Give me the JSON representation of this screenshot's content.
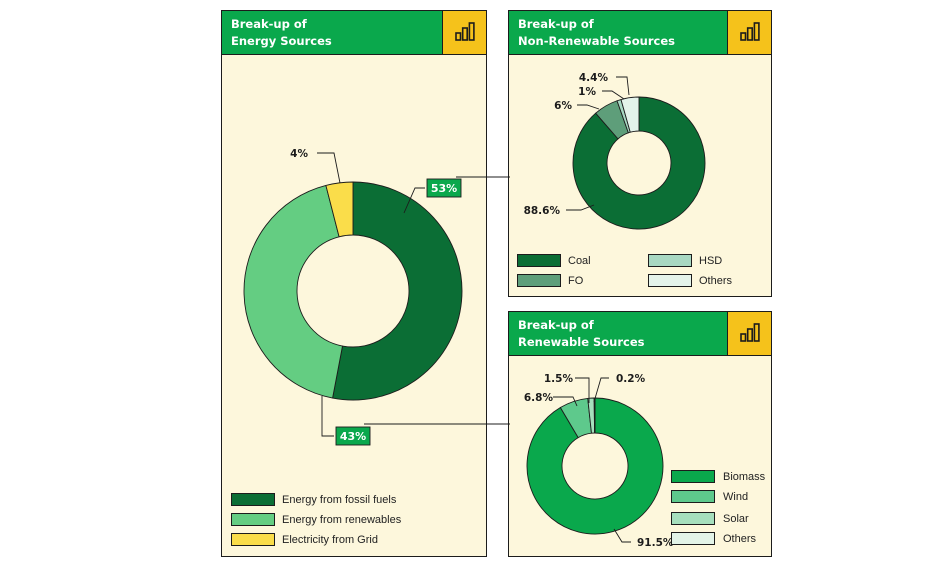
{
  "colors": {
    "panel_bg": "#fdf7dc",
    "header_bg": "#0aa84c",
    "icon_bg": "#f5c21b",
    "dark_green": "#0b6e35",
    "mid_green": "#64cd82",
    "yellow": "#fadd4a",
    "fo_green": "#5e9e7a",
    "hsd_green": "#a8d8c2",
    "others_light": "#e4f3ea",
    "biomass_green": "#0aa84c",
    "wind_green": "#5ec98c",
    "solar_green": "#a6dfbd",
    "others_pale": "#e3f4e8"
  },
  "panels": {
    "energy": {
      "title": "Break-up of\nEnergy Sources",
      "icon": "bar-chart-icon",
      "legend": [
        "Energy from fossil fuels",
        "Energy from renewables",
        "Electricity from Grid"
      ]
    },
    "nonrenewable": {
      "title": "Break-up of\nNon-Renewable Sources",
      "icon": "bar-chart-icon",
      "legend": [
        "Coal",
        "FO",
        "HSD",
        "Others"
      ]
    },
    "renewable": {
      "title": "Break-up of\nRenewable Sources",
      "icon": "bar-chart-icon",
      "legend": [
        "Biomass",
        "Wind",
        "Solar",
        "Others"
      ]
    }
  },
  "chart_data": [
    {
      "type": "pie",
      "variant": "donut",
      "title": "Break-up of Energy Sources",
      "categories": [
        "Energy from fossil fuels",
        "Energy from renewables",
        "Electricity from Grid"
      ],
      "values": [
        53,
        43,
        4
      ],
      "labels": [
        "53%",
        "43%",
        "4%"
      ],
      "colors": [
        "#0b6e35",
        "#64cd82",
        "#fadd4a"
      ],
      "legend_position": "bottom-left"
    },
    {
      "type": "pie",
      "variant": "donut",
      "title": "Break-up of Non-Renewable Sources",
      "categories": [
        "Coal",
        "FO",
        "HSD",
        "Others"
      ],
      "values": [
        88.6,
        6,
        1,
        4.4
      ],
      "labels": [
        "88.6%",
        "6%",
        "1%",
        "4.4%"
      ],
      "colors": [
        "#0b6e35",
        "#5e9e7a",
        "#a8d8c2",
        "#e4f3ea"
      ],
      "legend_position": "bottom"
    },
    {
      "type": "pie",
      "variant": "donut",
      "title": "Break-up of Renewable Sources",
      "categories": [
        "Biomass",
        "Wind",
        "Solar",
        "Others"
      ],
      "values": [
        91.5,
        6.8,
        1.5,
        0.2
      ],
      "labels": [
        "91.5%",
        "6.8%",
        "1.5%",
        "0.2%"
      ],
      "colors": [
        "#0aa84c",
        "#5ec98c",
        "#a6dfbd",
        "#e3f4e8"
      ],
      "legend_position": "right"
    }
  ]
}
